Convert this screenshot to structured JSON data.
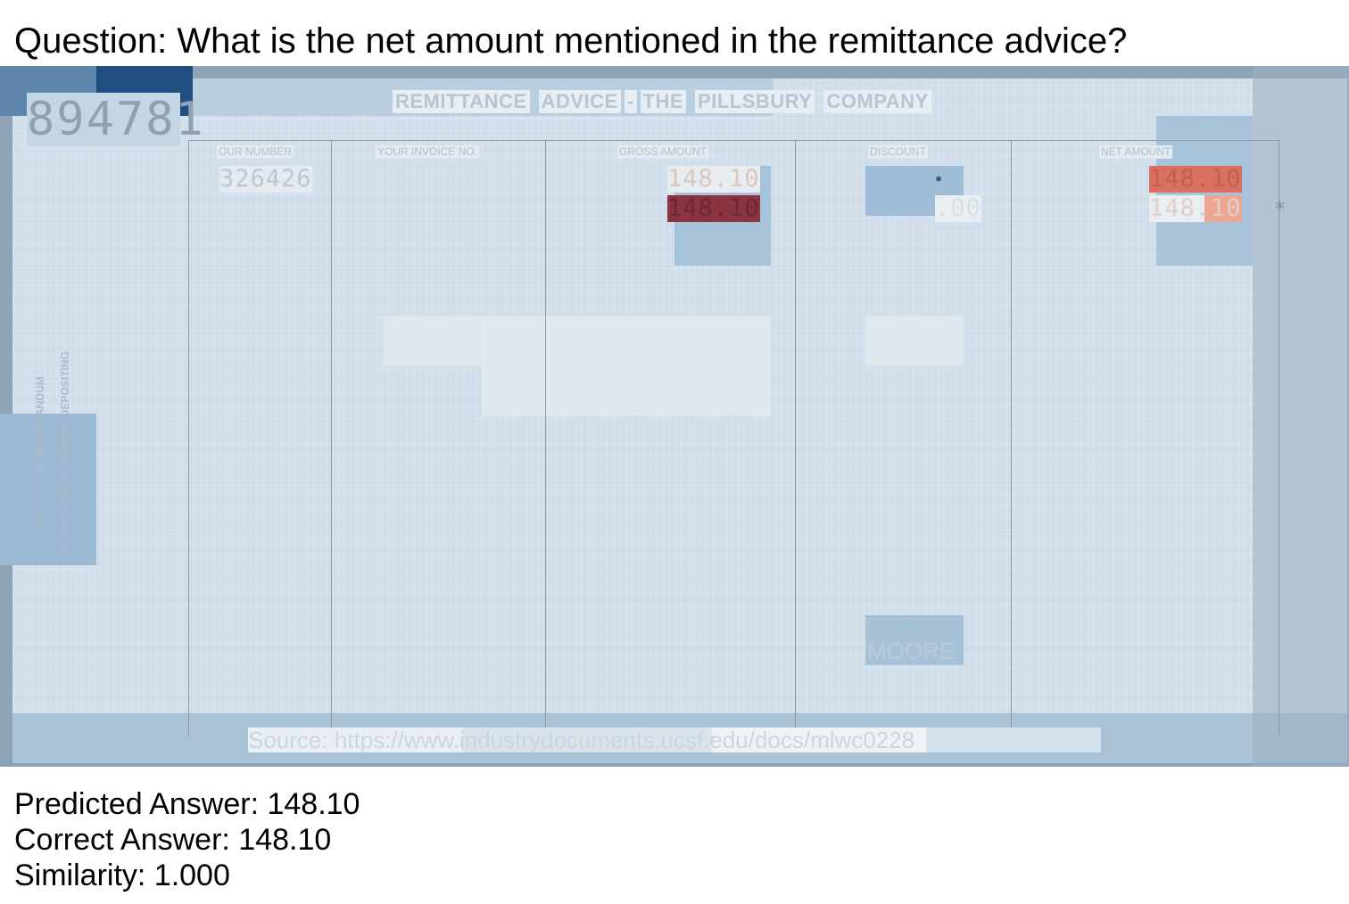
{
  "question": "Question: What is the net amount mentioned in the remittance advice?",
  "document": {
    "doc_number": "894781",
    "title_words": [
      "REMITTANCE",
      "ADVICE",
      "-",
      "THE",
      "PILLSBURY",
      "COMPANY"
    ],
    "columns": [
      "OUR NUMBER",
      "YOUR INVOICE NO.",
      "GROSS AMOUNT",
      "DISCOUNT",
      "NET AMOUNT"
    ],
    "our_number": "326426",
    "gross_amount_1": "148.10",
    "gross_amount_2": "148.10",
    "discount_dot": "•",
    "discount_total": ".00",
    "net_amount_1": "148.10",
    "net_amount_2": "148.10",
    "asterisk": "*",
    "side_text_1": "THIS IS YOUR MEMORANDUM",
    "side_text_2": "DETACH CHECK BEFORE DEPOSITING",
    "footer_word": "MOORE",
    "source": "Source: https://www.industrydocuments.ucsf.edu/docs/mlwc0228"
  },
  "answers": {
    "predicted": "Predicted Answer: 148.10",
    "correct": "Correct Answer: 148.10",
    "similarity": "Similarity: 1.000"
  },
  "colors": {
    "highlight_dark": "#8a3440",
    "highlight_red": "#d97060",
    "highlight_salmon": "#eba590",
    "paper": "#cfdeea"
  }
}
